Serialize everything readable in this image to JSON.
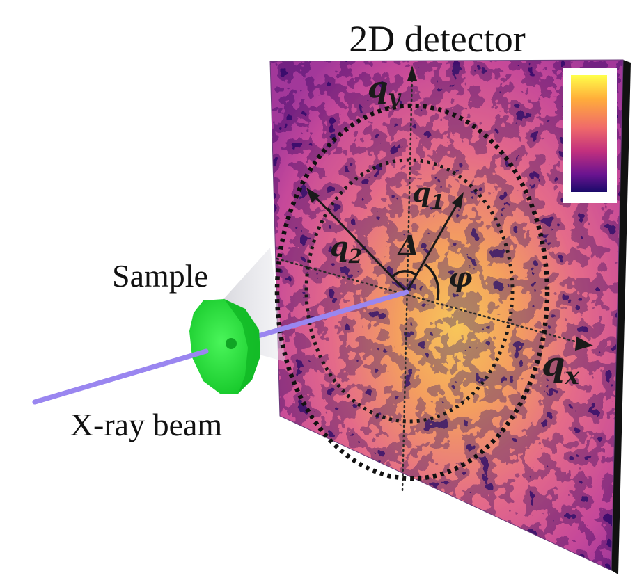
{
  "title": "2D detector",
  "labels": {
    "sample": "Sample",
    "beam": "X-ray beam"
  },
  "axes": {
    "qx": "q",
    "qx_sub": "x",
    "qy": "q",
    "qy_sub": "y"
  },
  "vectors": {
    "q1": "q",
    "q1_sub": "1",
    "q2": "q",
    "q2_sub": "2"
  },
  "angles": {
    "delta": "Δ",
    "phi": "φ"
  },
  "colors": {
    "detector_low": "#3a0a7a",
    "detector_mid": "#d9508a",
    "detector_high": "#ffd23a",
    "sample": "#22e03a",
    "beam": "#9a86f0"
  },
  "colorbar": {
    "stops": [
      "#ffff4a",
      "#ffae3a",
      "#f06a6a",
      "#c2307e",
      "#6a1490",
      "#1a0a6a"
    ]
  }
}
